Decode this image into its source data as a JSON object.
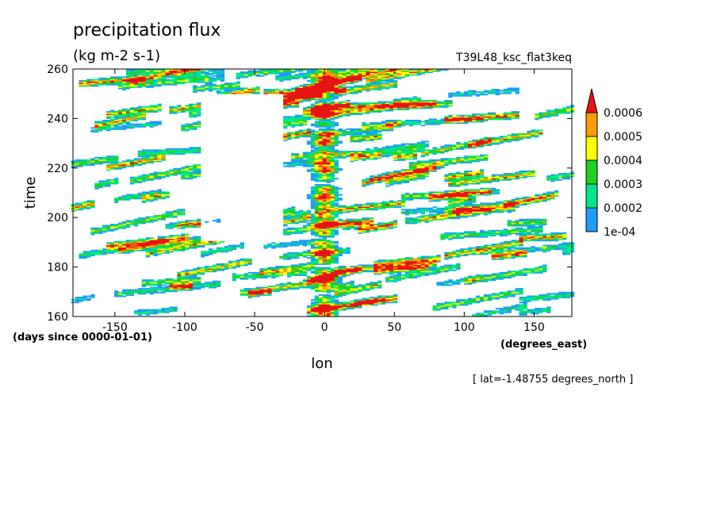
{
  "chart_data": {
    "type": "heatmap",
    "title": "precipitation flux",
    "units": "(kg m-2 s-1)",
    "dataset_label": "T39L48_ksc_flat3keq",
    "xlabel": "lon",
    "ylabel": "time",
    "x_units": "(degrees_east)",
    "y_units": "(days since 0000-01-01)",
    "slice_note": "[ lat=-1.48755 degrees_north ]",
    "xlim": [
      -180,
      177
    ],
    "ylim": [
      160,
      260
    ],
    "x_ticks": [
      -150,
      -100,
      -50,
      0,
      50,
      100,
      150
    ],
    "x_tick_labels": [
      "-150",
      "-100",
      "-50",
      "0",
      "50",
      "100",
      "150"
    ],
    "y_ticks": [
      160,
      180,
      200,
      220,
      240,
      260
    ],
    "y_tick_labels": [
      "160",
      "180",
      "200",
      "220",
      "240",
      "260"
    ],
    "colorbar": {
      "levels": [
        0.0001,
        0.0002,
        0.0003,
        0.0004,
        0.0005,
        0.0006
      ],
      "labels": [
        "1e-04",
        "0.0002",
        "0.0003",
        "0.0004",
        "0.0005",
        "0.0006"
      ],
      "colors": [
        "#1e9bff",
        "#00e68c",
        "#1ed21e",
        "#ffff00",
        "#ff9b00",
        "#e61414"
      ],
      "extend": "max"
    },
    "features": {
      "persistent_band": {
        "lon_min": -12,
        "lon_max": 12,
        "note": "strong persistent precipitation near lon 0 throughout"
      },
      "propagation": "eastward-propagating streaks tilted toward later time at larger lon",
      "dry_region": {
        "lon_min": -90,
        "lon_max": -30,
        "time_min": 190,
        "time_max": 250
      }
    }
  }
}
